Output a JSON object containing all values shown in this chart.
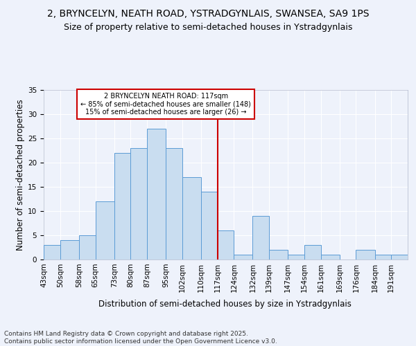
{
  "title1": "2, BRYNCELYN, NEATH ROAD, YSTRADGYNLAIS, SWANSEA, SA9 1PS",
  "title2": "Size of property relative to semi-detached houses in Ystradgynlais",
  "xlabel": "Distribution of semi-detached houses by size in Ystradgynlais",
  "ylabel": "Number of semi-detached properties",
  "footer": "Contains HM Land Registry data © Crown copyright and database right 2025.\nContains public sector information licensed under the Open Government Licence v3.0.",
  "bin_labels": [
    "43sqm",
    "50sqm",
    "58sqm",
    "65sqm",
    "73sqm",
    "80sqm",
    "87sqm",
    "95sqm",
    "102sqm",
    "110sqm",
    "117sqm",
    "124sqm",
    "132sqm",
    "139sqm",
    "147sqm",
    "154sqm",
    "161sqm",
    "169sqm",
    "176sqm",
    "184sqm",
    "191sqm"
  ],
  "bin_edges": [
    43,
    50,
    58,
    65,
    73,
    80,
    87,
    95,
    102,
    110,
    117,
    124,
    132,
    139,
    147,
    154,
    161,
    169,
    176,
    184,
    191,
    198
  ],
  "bar_heights": [
    3,
    4,
    5,
    12,
    22,
    23,
    27,
    23,
    17,
    14,
    6,
    1,
    9,
    2,
    1,
    3,
    1,
    0,
    2,
    1,
    1
  ],
  "bar_color": "#c9ddf0",
  "bar_edge_color": "#5b9bd5",
  "ref_line_x": 117,
  "ref_line_color": "#cc0000",
  "annotation_text": "2 BRYNCELYN NEATH ROAD: 117sqm\n← 85% of semi-detached houses are smaller (148)\n15% of semi-detached houses are larger (26) →",
  "annotation_box_color": "#ffffff",
  "annotation_box_edge": "#cc0000",
  "ylim": [
    0,
    35
  ],
  "yticks": [
    0,
    5,
    10,
    15,
    20,
    25,
    30,
    35
  ],
  "background_color": "#eef2fb",
  "grid_color": "#ffffff",
  "title1_fontsize": 10,
  "title2_fontsize": 9,
  "axis_label_fontsize": 8.5,
  "tick_fontsize": 7.5,
  "footer_fontsize": 6.5
}
